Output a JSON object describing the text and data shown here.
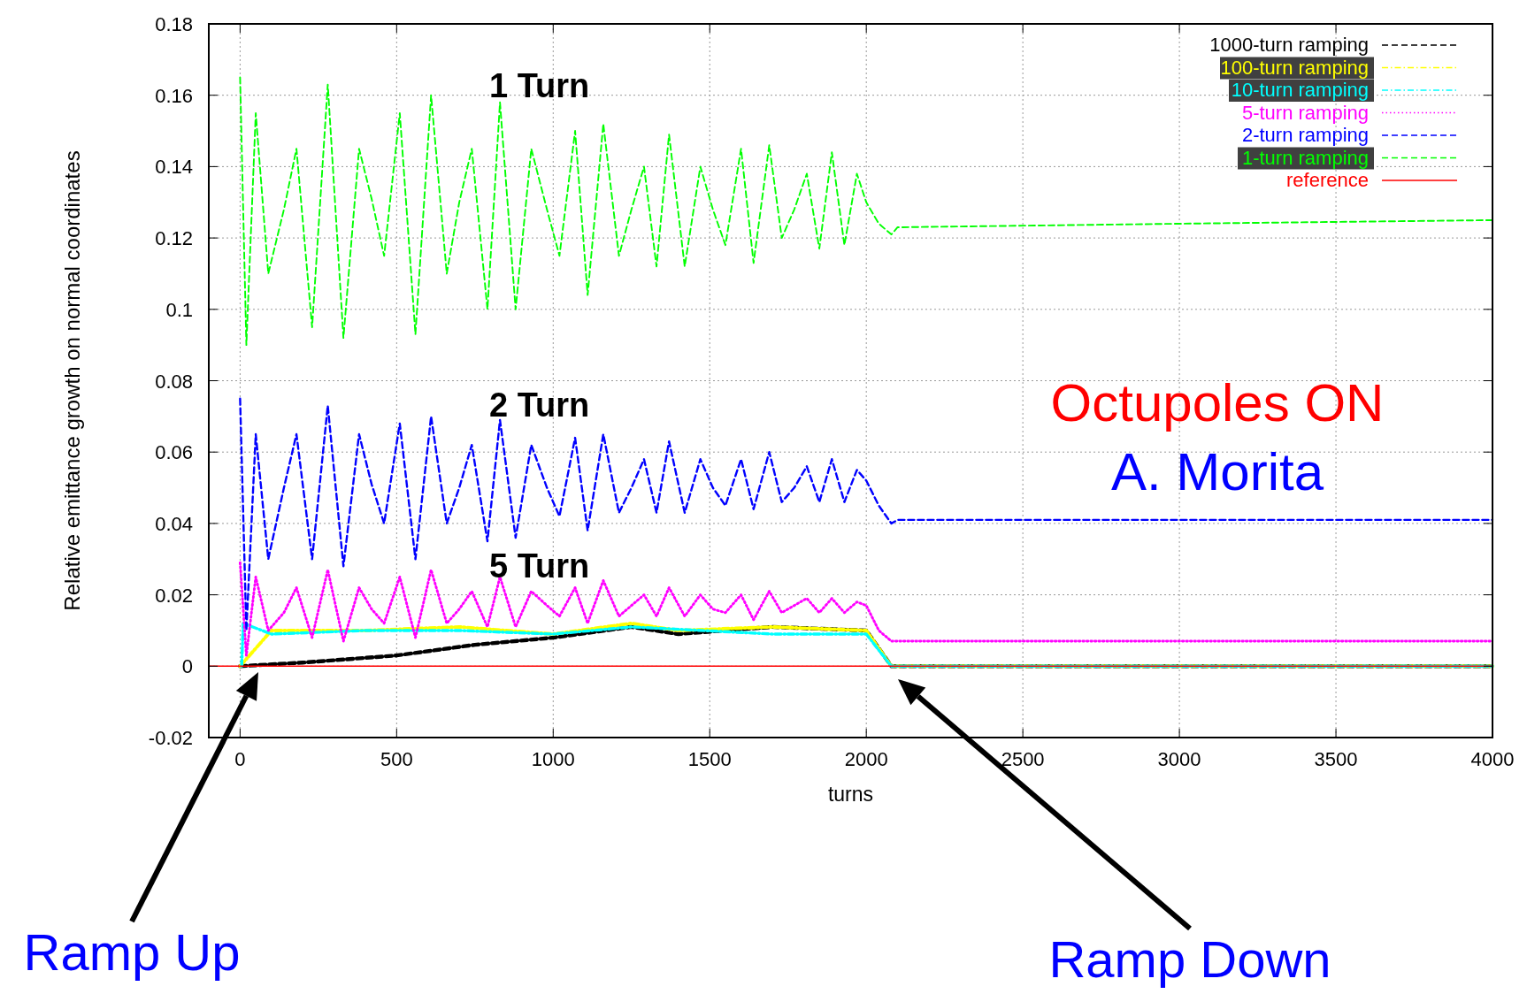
{
  "chart_data": {
    "type": "line",
    "xlabel": "turns",
    "ylabel": "Relative emittance growth on normal coordinates",
    "xlim": [
      -100,
      4000
    ],
    "xticks": [
      0,
      500,
      1000,
      1500,
      2000,
      2500,
      3000,
      3500,
      4000
    ],
    "ylim": [
      -0.02,
      0.18
    ],
    "yticks": [
      -0.02,
      0,
      0.02,
      0.04,
      0.06,
      0.08,
      0.1,
      0.12,
      0.14,
      0.16,
      0.18
    ],
    "grid": true,
    "legend": "top right",
    "series": [
      {
        "name": "1000-turn ramping",
        "color": "#000000",
        "line_style": "dashed",
        "x": [
          0,
          200,
          500,
          750,
          1000,
          1250,
          1400,
          1700,
          2000,
          2080,
          4000
        ],
        "values": [
          0,
          0.001,
          0.003,
          0.006,
          0.008,
          0.011,
          0.009,
          0.011,
          0.01,
          0,
          0
        ]
      },
      {
        "name": "100-turn ramping",
        "color": "#ffff00",
        "line_style": "dashdot",
        "x": [
          0,
          100,
          400,
          700,
          1000,
          1250,
          1400,
          1700,
          2000,
          2080,
          4000
        ],
        "values": [
          0,
          0.01,
          0.01,
          0.011,
          0.009,
          0.012,
          0.01,
          0.011,
          0.01,
          0,
          0
        ]
      },
      {
        "name": "10-turn ramping",
        "color": "#00ffff",
        "line_style": "dashdot",
        "x": [
          5,
          10,
          100,
          400,
          700,
          1000,
          1250,
          1700,
          2000,
          2080,
          4000
        ],
        "values": [
          0,
          0.012,
          0.009,
          0.01,
          0.01,
          0.009,
          0.011,
          0.009,
          0.009,
          0,
          0
        ]
      },
      {
        "name": "5-turn ramping",
        "color": "#ff00ff",
        "line_style": "dotted",
        "x": [
          0,
          20,
          50,
          90,
          140,
          180,
          230,
          280,
          330,
          380,
          420,
          460,
          510,
          560,
          610,
          660,
          700,
          740,
          790,
          830,
          880,
          930,
          980,
          1020,
          1070,
          1110,
          1160,
          1210,
          1250,
          1290,
          1330,
          1370,
          1420,
          1470,
          1510,
          1550,
          1600,
          1640,
          1690,
          1730,
          1770,
          1810,
          1850,
          1890,
          1930,
          1970,
          2000,
          2040,
          2080,
          2100,
          3000,
          4000
        ],
        "values": [
          0.029,
          0.003,
          0.025,
          0.01,
          0.015,
          0.022,
          0.008,
          0.027,
          0.007,
          0.022,
          0.016,
          0.012,
          0.025,
          0.008,
          0.027,
          0.012,
          0.016,
          0.021,
          0.011,
          0.025,
          0.011,
          0.021,
          0.017,
          0.014,
          0.022,
          0.012,
          0.024,
          0.014,
          0.017,
          0.02,
          0.014,
          0.022,
          0.014,
          0.02,
          0.016,
          0.015,
          0.02,
          0.013,
          0.021,
          0.015,
          0.017,
          0.019,
          0.015,
          0.019,
          0.015,
          0.018,
          0.017,
          0.01,
          0.007,
          0.007,
          0.007,
          0.007
        ]
      },
      {
        "name": "2-turn ramping",
        "color": "#0000ff",
        "line_style": "dashed",
        "x": [
          0,
          20,
          50,
          90,
          140,
          180,
          230,
          280,
          330,
          380,
          420,
          460,
          510,
          560,
          610,
          660,
          700,
          740,
          790,
          830,
          880,
          930,
          980,
          1020,
          1070,
          1110,
          1160,
          1210,
          1250,
          1290,
          1330,
          1370,
          1420,
          1470,
          1510,
          1550,
          1600,
          1640,
          1690,
          1730,
          1770,
          1810,
          1850,
          1890,
          1930,
          1970,
          2000,
          2040,
          2080,
          2100,
          3000,
          4000
        ],
        "values": [
          0.075,
          0.01,
          0.065,
          0.03,
          0.05,
          0.065,
          0.03,
          0.073,
          0.028,
          0.065,
          0.051,
          0.04,
          0.068,
          0.03,
          0.07,
          0.04,
          0.05,
          0.062,
          0.035,
          0.069,
          0.036,
          0.062,
          0.05,
          0.042,
          0.064,
          0.038,
          0.065,
          0.043,
          0.05,
          0.058,
          0.043,
          0.063,
          0.043,
          0.058,
          0.05,
          0.045,
          0.058,
          0.044,
          0.06,
          0.046,
          0.05,
          0.056,
          0.046,
          0.058,
          0.046,
          0.055,
          0.052,
          0.045,
          0.04,
          0.041,
          0.041,
          0.041
        ]
      },
      {
        "name": "1-turn ramping",
        "color": "#00ff00",
        "line_style": "dashed",
        "x": [
          0,
          20,
          50,
          90,
          140,
          180,
          230,
          280,
          330,
          380,
          420,
          460,
          510,
          560,
          610,
          660,
          700,
          740,
          790,
          830,
          880,
          930,
          980,
          1020,
          1070,
          1110,
          1160,
          1210,
          1250,
          1290,
          1330,
          1370,
          1420,
          1470,
          1510,
          1550,
          1600,
          1640,
          1690,
          1730,
          1770,
          1810,
          1850,
          1890,
          1930,
          1970,
          2000,
          2040,
          2080,
          2100,
          3000,
          4000
        ],
        "values": [
          0.165,
          0.09,
          0.155,
          0.11,
          0.128,
          0.145,
          0.095,
          0.163,
          0.092,
          0.145,
          0.131,
          0.115,
          0.155,
          0.093,
          0.16,
          0.11,
          0.13,
          0.145,
          0.1,
          0.158,
          0.1,
          0.145,
          0.128,
          0.115,
          0.15,
          0.104,
          0.152,
          0.115,
          0.128,
          0.14,
          0.112,
          0.149,
          0.112,
          0.14,
          0.128,
          0.118,
          0.145,
          0.113,
          0.146,
          0.12,
          0.128,
          0.138,
          0.117,
          0.144,
          0.118,
          0.138,
          0.13,
          0.124,
          0.121,
          0.123,
          0.124,
          0.125
        ]
      },
      {
        "name": "reference",
        "color": "#ff0000",
        "line_style": "solid",
        "x": [
          -100,
          4000
        ],
        "values": [
          0,
          0
        ]
      }
    ],
    "annotations": [
      "1 Turn",
      "2 Turn",
      "5 Turn",
      "Octupoles ON",
      "A. Morita",
      "Ramp Up",
      "Ramp Down"
    ]
  }
}
